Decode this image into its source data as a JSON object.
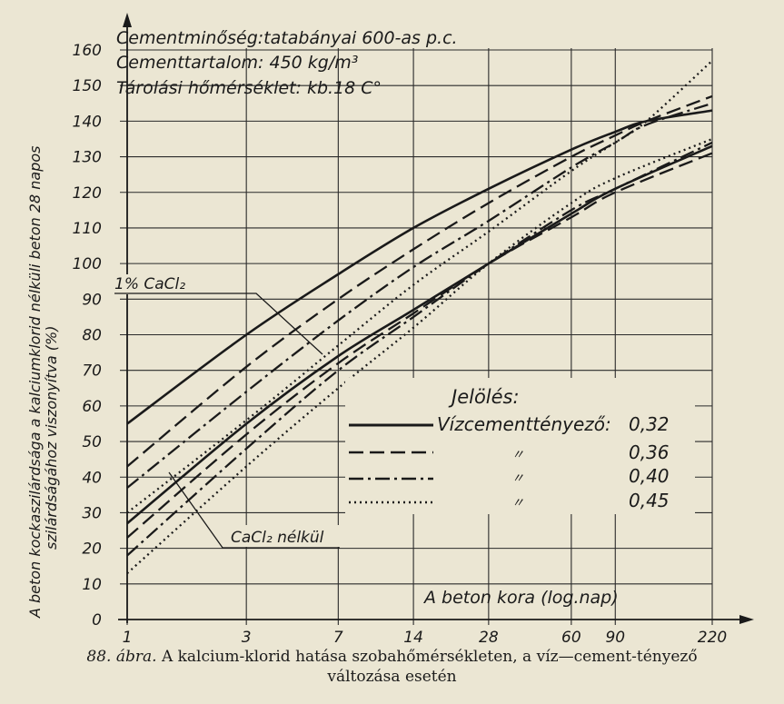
{
  "chart_data": {
    "type": "line",
    "title_lines": [
      "Cementminőség:tatabányai 600-as p.c.",
      "Cementtartalom: 450 kg/m³",
      "Tárolási hőmérséklet: kb.18 C°"
    ],
    "ylabel_lines": [
      "A beton kockaszilárdsága a kalciumklorid nélküli beton 28 napos",
      "szilárdságához viszonyítva (%)"
    ],
    "xlabel": "A beton kora (log.nap)",
    "x_scale": "log",
    "x_ticks": [
      1,
      3,
      7,
      14,
      28,
      60,
      90,
      220
    ],
    "xlim": [
      1,
      220
    ],
    "ylim": [
      0,
      160
    ],
    "y_ticks": [
      0,
      10,
      20,
      30,
      40,
      50,
      60,
      70,
      80,
      90,
      100,
      110,
      120,
      130,
      140,
      150,
      160
    ],
    "grid": true,
    "annotations": [
      "1% CaCl₂",
      "CaCl₂ nélkül"
    ],
    "legend": {
      "title": "Jelölés:",
      "header": "Vízcementtényező:",
      "ditto": "〃",
      "placement": "lower-right",
      "entries": [
        {
          "value": "0,32",
          "style": "solid"
        },
        {
          "value": "0,36",
          "style": "dashed"
        },
        {
          "value": "0,40",
          "style": "dashdot"
        },
        {
          "value": "0,45",
          "style": "dotted"
        }
      ]
    },
    "series": [
      {
        "group": "1% CaCl₂",
        "wc": "0,32",
        "style": "solid",
        "x": [
          1,
          3,
          7,
          14,
          28,
          60,
          90,
          120,
          220
        ],
        "y": [
          55,
          80,
          97,
          110,
          121,
          132,
          137,
          140,
          143
        ]
      },
      {
        "group": "1% CaCl₂",
        "wc": "0,36",
        "style": "dashed",
        "x": [
          1,
          3,
          7,
          14,
          28,
          60,
          90,
          120,
          220
        ],
        "y": [
          43,
          71,
          90,
          104,
          117,
          130,
          136,
          140,
          147
        ]
      },
      {
        "group": "1% CaCl₂",
        "wc": "0,40",
        "style": "dashdot",
        "x": [
          1,
          3,
          7,
          14,
          28,
          60,
          90,
          120,
          220
        ],
        "y": [
          37,
          64,
          84,
          99,
          112,
          127,
          134,
          139,
          145
        ]
      },
      {
        "group": "1% CaCl₂",
        "wc": "0,45",
        "style": "dotted",
        "x": [
          1,
          3,
          7,
          14,
          28,
          60,
          90,
          120,
          220
        ],
        "y": [
          30,
          56,
          77,
          94,
          109,
          126,
          134,
          140,
          157
        ]
      },
      {
        "group": "CaCl₂ nélkül",
        "wc": "0,32",
        "style": "solid",
        "x": [
          1,
          3,
          7,
          14,
          28,
          60,
          90,
          220
        ],
        "y": [
          27,
          55,
          74,
          87,
          100,
          114,
          121,
          133
        ]
      },
      {
        "group": "CaCl₂ nélkül",
        "wc": "0,36",
        "style": "dashed",
        "x": [
          1,
          3,
          7,
          14,
          28,
          60,
          90,
          220
        ],
        "y": [
          23,
          52,
          72,
          86,
          100,
          113,
          120,
          131
        ]
      },
      {
        "group": "CaCl₂ nélkül",
        "wc": "0,40",
        "style": "dashdot",
        "x": [
          1,
          3,
          7,
          14,
          28,
          60,
          90,
          220
        ],
        "y": [
          18,
          48,
          70,
          85,
          100,
          115,
          121,
          134
        ]
      },
      {
        "group": "CaCl₂ nélkül",
        "wc": "0,45",
        "style": "dotted",
        "x": [
          1,
          3,
          7,
          14,
          28,
          60,
          90,
          220
        ],
        "y": [
          13,
          43,
          65,
          82,
          100,
          117,
          124,
          135
        ]
      }
    ]
  },
  "caption": {
    "figure": "88. ábra.",
    "line1": "A kalcium-klorid hatása szobahőmérsékleten, a víz—cement-tényező",
    "line2": "változása esetén"
  }
}
